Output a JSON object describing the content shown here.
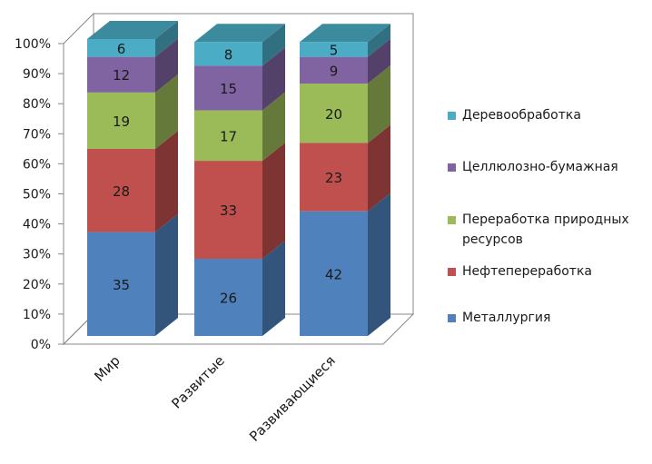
{
  "chart_data": {
    "type": "bar",
    "stacked": true,
    "percent": true,
    "three_d": true,
    "categories": [
      "Мир",
      "Развитые",
      "Развивающиеся"
    ],
    "series": [
      {
        "name": "Металлургия",
        "values": [
          35,
          26,
          42
        ],
        "color": "#4f81bd"
      },
      {
        "name": "Нефтепереработка",
        "values": [
          28,
          33,
          23
        ],
        "color": "#c0504d"
      },
      {
        "name": "Переработка природных ресурсов",
        "values": [
          19,
          17,
          20
        ],
        "color": "#9bbb59"
      },
      {
        "name": "Целлюлозно-бумажная",
        "values": [
          12,
          15,
          9
        ],
        "color": "#8064a2"
      },
      {
        "name": "Деревообработка",
        "values": [
          6,
          8,
          5
        ],
        "color": "#4bacc6"
      }
    ],
    "y_ticks": [
      "0%",
      "10%",
      "20%",
      "30%",
      "40%",
      "50%",
      "60%",
      "70%",
      "80%",
      "90%",
      "100%"
    ],
    "ylim": [
      0,
      100
    ],
    "grid": false,
    "legend_position": "right",
    "legend_order": [
      "Деревообработка",
      "Целлюлозно-бумажная",
      "Переработка природных ресурсов",
      "Нефтепереработка",
      "Металлургия"
    ]
  }
}
